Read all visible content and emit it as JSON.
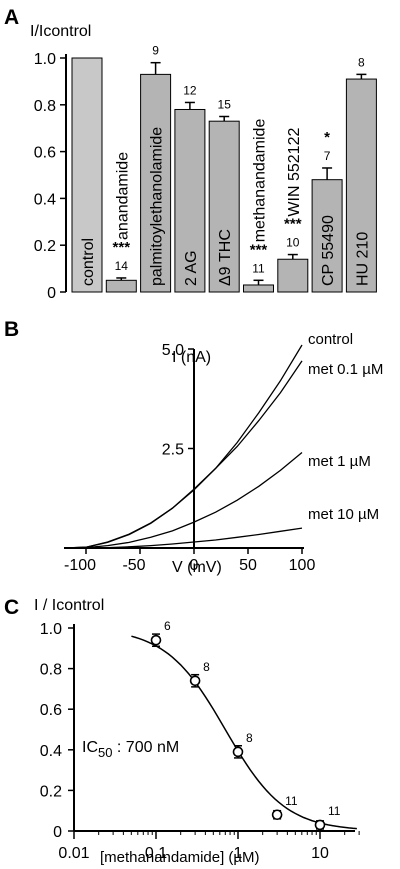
{
  "chart_data": [
    {
      "panel": "A",
      "type": "bar",
      "ylabel": "I/Icontrol",
      "ylim": [
        0,
        1.0
      ],
      "yticks": [
        "0",
        "0.2",
        "0.4",
        "0.6",
        "0.8",
        "1.0"
      ],
      "categories": [
        "control",
        "anandamide",
        "palmitoylethanolamide",
        "2 AG",
        "Δ9 THC",
        "methanandamide",
        "WIN 552122",
        "CP 55490",
        "HU 210"
      ],
      "values": [
        1.0,
        0.05,
        0.93,
        0.78,
        0.73,
        0.03,
        0.14,
        0.48,
        0.91
      ],
      "errors": [
        0,
        0.01,
        0.05,
        0.03,
        0.02,
        0.02,
        0.02,
        0.05,
        0.02
      ],
      "n_labels": [
        "",
        "14",
        "9",
        "12",
        "15",
        "11",
        "10",
        "7",
        "8"
      ],
      "significance": [
        "",
        "***",
        "",
        "",
        "",
        "***",
        "***",
        "*",
        ""
      ],
      "bar_colors": [
        "#c8c8c8",
        "#b4b4b4",
        "#b4b4b4",
        "#b4b4b4",
        "#b4b4b4",
        "#b4b4b4",
        "#b4b4b4",
        "#b4b4b4",
        "#b4b4b4"
      ]
    },
    {
      "panel": "B",
      "type": "line",
      "ylabel": "I (nA)",
      "xlabel": "V (mV)",
      "xlim": [
        -120,
        100
      ],
      "ylim": [
        0,
        5.0
      ],
      "xticks": [
        "-100",
        "-50",
        "0",
        "50",
        "100"
      ],
      "yticks": [
        "2.5",
        "5.0"
      ],
      "series": [
        {
          "name": "control",
          "x": [
            -120,
            -100,
            -80,
            -60,
            -40,
            -20,
            0,
            20,
            40,
            60,
            80,
            100
          ],
          "y": [
            0.0,
            0.02,
            0.15,
            0.35,
            0.63,
            1.0,
            1.46,
            2.0,
            2.65,
            3.4,
            4.2,
            5.1
          ]
        },
        {
          "name": "met 0.1 µM",
          "x": [
            -120,
            -100,
            -80,
            -60,
            -40,
            -20,
            0,
            20,
            40,
            60,
            80,
            100
          ],
          "y": [
            0.0,
            0.02,
            0.14,
            0.34,
            0.62,
            1.0,
            1.48,
            2.0,
            2.55,
            3.2,
            3.9,
            4.7
          ]
        },
        {
          "name": "met 1 µM",
          "x": [
            -120,
            -100,
            -80,
            -60,
            -40,
            -20,
            0,
            20,
            40,
            60,
            80,
            100
          ],
          "y": [
            0.0,
            0.01,
            0.06,
            0.14,
            0.27,
            0.43,
            0.65,
            0.9,
            1.2,
            1.55,
            1.95,
            2.4
          ]
        },
        {
          "name": "met 10 µM",
          "x": [
            -120,
            -100,
            -80,
            -60,
            -40,
            -20,
            0,
            20,
            40,
            60,
            80,
            100
          ],
          "y": [
            0.0,
            0.0,
            0.01,
            0.03,
            0.06,
            0.1,
            0.15,
            0.2,
            0.27,
            0.34,
            0.42,
            0.5
          ]
        }
      ]
    },
    {
      "panel": "C",
      "type": "scatter",
      "ylabel": "I / Icontrol",
      "xlabel": "[methanandamide] (µM)",
      "xscale": "log",
      "xlim": [
        0.01,
        30
      ],
      "ylim": [
        0,
        1.0
      ],
      "xticks": [
        "0.01",
        "0.1",
        "1",
        "10"
      ],
      "yticks": [
        "0",
        "0.2",
        "0.4",
        "0.6",
        "0.8",
        "1.0"
      ],
      "annotation": "IC50 : 700 nM",
      "x": [
        0.1,
        0.3,
        1,
        3,
        10
      ],
      "y": [
        0.94,
        0.74,
        0.39,
        0.08,
        0.03
      ],
      "errors": [
        0.03,
        0.03,
        0.03,
        0.02,
        0.02
      ],
      "n_labels": [
        "6",
        "8",
        "8",
        "11",
        "11"
      ],
      "fit": {
        "ic50": 0.7,
        "hill": 1.2
      }
    }
  ]
}
